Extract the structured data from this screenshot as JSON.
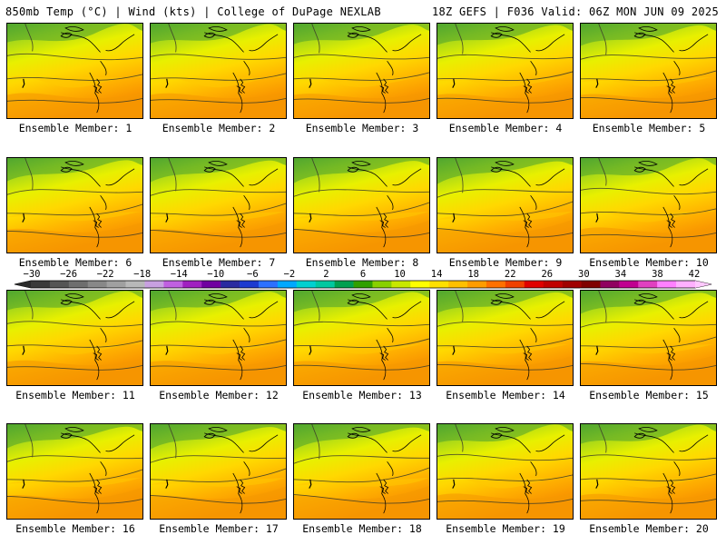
{
  "header": {
    "left": "850mb Temp (°C) | Wind (kts) | College of DuPage NEXLAB",
    "right": "18Z GEFS | F036 Valid: 06Z MON JUN 09 2025"
  },
  "members": [
    {
      "label": "Ensemble Member: 1"
    },
    {
      "label": "Ensemble Member: 2"
    },
    {
      "label": "Ensemble Member: 3"
    },
    {
      "label": "Ensemble Member: 4"
    },
    {
      "label": "Ensemble Member: 5"
    },
    {
      "label": "Ensemble Member: 6"
    },
    {
      "label": "Ensemble Member: 7"
    },
    {
      "label": "Ensemble Member: 8"
    },
    {
      "label": "Ensemble Member: 9"
    },
    {
      "label": "Ensemble Member: 10"
    },
    {
      "label": "Ensemble Member: 11"
    },
    {
      "label": "Ensemble Member: 12"
    },
    {
      "label": "Ensemble Member: 13"
    },
    {
      "label": "Ensemble Member: 14"
    },
    {
      "label": "Ensemble Member: 15"
    },
    {
      "label": "Ensemble Member: 16"
    },
    {
      "label": "Ensemble Member: 17"
    },
    {
      "label": "Ensemble Member: 18"
    },
    {
      "label": "Ensemble Member: 19"
    },
    {
      "label": "Ensemble Member: 20"
    }
  ],
  "colorbar": {
    "labels": [
      "−30",
      "−26",
      "−22",
      "−18",
      "−14",
      "−10",
      "−6",
      "−2",
      "2",
      "6",
      "10",
      "14",
      "18",
      "22",
      "26",
      "30",
      "34",
      "38",
      "42"
    ],
    "colors": [
      "#3a3a3a",
      "#555555",
      "#6e6e6e",
      "#888888",
      "#a0a0a0",
      "#b8b8b8",
      "#c8a0e0",
      "#c060e0",
      "#a020c0",
      "#7000a0",
      "#2a2aa0",
      "#1c3ad0",
      "#2c70ff",
      "#00a8ff",
      "#00d0d0",
      "#00c8a0",
      "#00a050",
      "#30a000",
      "#88d000",
      "#c8e800",
      "#ffff00",
      "#ffe000",
      "#ffc000",
      "#ff9c00",
      "#ff7000",
      "#f04000",
      "#e00000",
      "#c00000",
      "#a00000",
      "#800000",
      "#900060",
      "#c00090",
      "#e040c0",
      "#ff80ff",
      "#ffb0ff"
    ]
  }
}
